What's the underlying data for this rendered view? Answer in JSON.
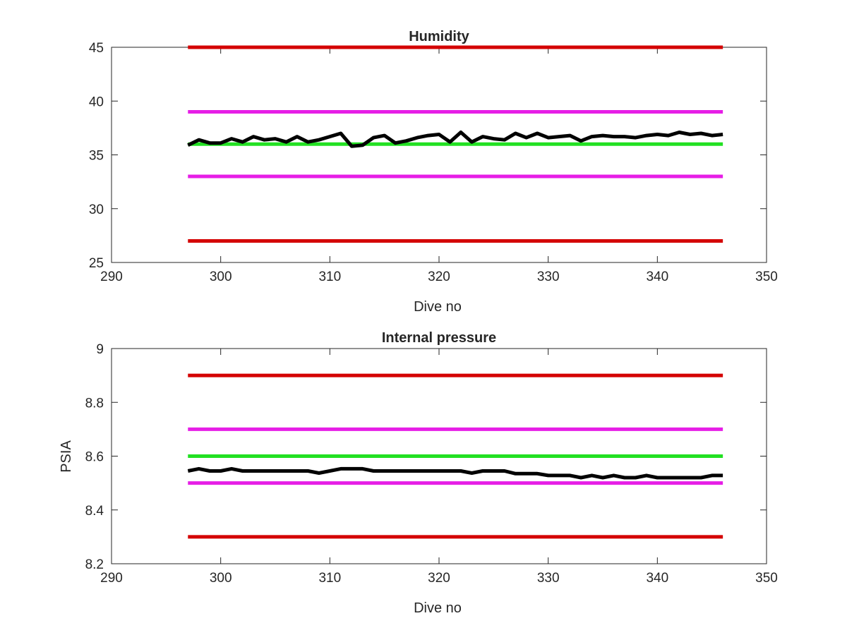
{
  "chart_data": [
    {
      "type": "line",
      "title": "Humidity",
      "xlabel": "Dive no",
      "ylabel": "",
      "xlim": [
        290,
        350
      ],
      "ylim": [
        25,
        45
      ],
      "xticks": [
        290,
        300,
        310,
        320,
        330,
        340,
        350
      ],
      "yticks": [
        25,
        30,
        35,
        40,
        45
      ],
      "grid": false,
      "limits": [
        {
          "value": 45,
          "x": [
            297,
            346
          ],
          "color": "#d40000"
        },
        {
          "value": 39,
          "x": [
            297,
            346
          ],
          "color": "#e61ee6"
        },
        {
          "value": 36,
          "x": [
            297,
            346
          ],
          "color": "#22e022"
        },
        {
          "value": 33,
          "x": [
            297,
            346
          ],
          "color": "#e61ee6"
        },
        {
          "value": 27,
          "x": [
            297,
            346
          ],
          "color": "#d40000"
        }
      ],
      "series": [
        {
          "color": "#000000",
          "x": [
            297,
            298,
            299,
            300,
            301,
            302,
            303,
            304,
            305,
            306,
            307,
            308,
            309,
            310,
            311,
            312,
            313,
            314,
            315,
            316,
            317,
            318,
            319,
            320,
            321,
            322,
            323,
            324,
            325,
            326,
            327,
            328,
            329,
            330,
            331,
            332,
            333,
            334,
            335,
            336,
            337,
            338,
            339,
            340,
            341,
            342,
            343,
            344,
            345,
            346
          ],
          "y": [
            35.9,
            36.4,
            36.1,
            36.1,
            36.5,
            36.2,
            36.7,
            36.4,
            36.5,
            36.2,
            36.7,
            36.2,
            36.4,
            36.7,
            37.0,
            35.8,
            35.9,
            36.6,
            36.8,
            36.1,
            36.3,
            36.6,
            36.8,
            36.9,
            36.2,
            37.1,
            36.2,
            36.7,
            36.5,
            36.4,
            37.0,
            36.6,
            37.0,
            36.6,
            36.7,
            36.8,
            36.3,
            36.7,
            36.8,
            36.7,
            36.7,
            36.6,
            36.8,
            36.9,
            36.8,
            37.1,
            36.9,
            37.0,
            36.8,
            36.9
          ]
        }
      ]
    },
    {
      "type": "line",
      "title": "Internal pressure",
      "xlabel": "Dive no",
      "ylabel": "PSIA",
      "xlim": [
        290,
        350
      ],
      "ylim": [
        8.2,
        9
      ],
      "xticks": [
        290,
        300,
        310,
        320,
        330,
        340,
        350
      ],
      "yticks": [
        8.2,
        8.4,
        8.6,
        8.8,
        9
      ],
      "grid": false,
      "limits": [
        {
          "value": 8.9,
          "x": [
            297,
            346
          ],
          "color": "#d40000"
        },
        {
          "value": 8.7,
          "x": [
            297,
            346
          ],
          "color": "#e61ee6"
        },
        {
          "value": 8.6,
          "x": [
            297,
            346
          ],
          "color": "#22e022"
        },
        {
          "value": 8.5,
          "x": [
            297,
            346
          ],
          "color": "#e61ee6"
        },
        {
          "value": 8.3,
          "x": [
            297,
            346
          ],
          "color": "#d40000"
        }
      ],
      "series": [
        {
          "color": "#000000",
          "x": [
            297,
            298,
            299,
            300,
            301,
            302,
            303,
            304,
            305,
            306,
            307,
            308,
            309,
            310,
            311,
            312,
            313,
            314,
            315,
            316,
            317,
            318,
            319,
            320,
            321,
            322,
            323,
            324,
            325,
            326,
            327,
            328,
            329,
            330,
            331,
            332,
            333,
            334,
            335,
            336,
            337,
            338,
            339,
            340,
            341,
            342,
            343,
            344,
            345,
            346
          ],
          "y": [
            8.545,
            8.553,
            8.545,
            8.545,
            8.553,
            8.545,
            8.545,
            8.545,
            8.545,
            8.545,
            8.545,
            8.545,
            8.537,
            8.545,
            8.553,
            8.553,
            8.553,
            8.545,
            8.545,
            8.545,
            8.545,
            8.545,
            8.545,
            8.545,
            8.545,
            8.545,
            8.537,
            8.545,
            8.545,
            8.545,
            8.535,
            8.535,
            8.535,
            8.528,
            8.528,
            8.528,
            8.52,
            8.528,
            8.52,
            8.528,
            8.52,
            8.52,
            8.528,
            8.52,
            8.52,
            8.52,
            8.52,
            8.52,
            8.528,
            8.528
          ]
        }
      ]
    }
  ]
}
